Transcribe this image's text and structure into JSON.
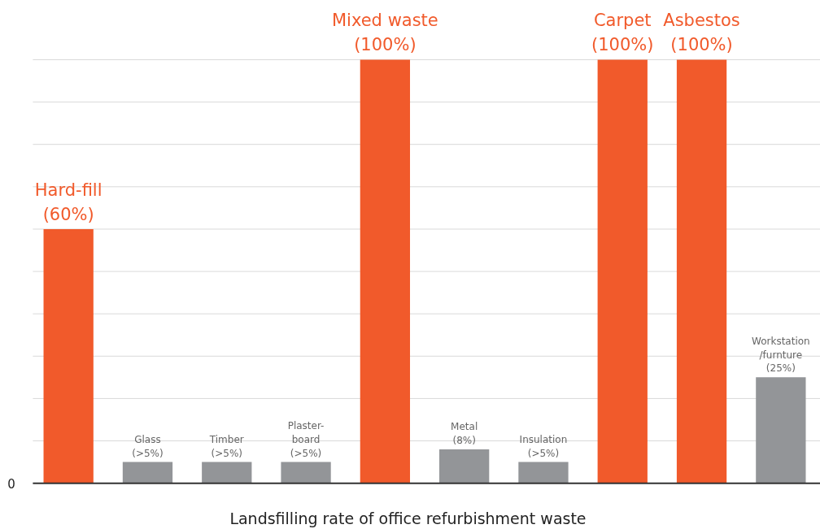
{
  "chart_data": {
    "type": "bar",
    "xlabel": "Landsfilling  rate of office refurbishment waste",
    "categories": [
      "Hard-fill",
      "Glass",
      "Timber",
      "Plaster-\nboard",
      "Mixed waste",
      "Metal",
      "Insulation",
      "Carpet",
      "Asbestos",
      "Workstation\n/furnture"
    ],
    "values": [
      60,
      5,
      5,
      5,
      100,
      8,
      5,
      100,
      100,
      25
    ],
    "value_labels": [
      "(60%)",
      "(>5%)",
      "(>5%)",
      "(>5%)",
      "(100%)",
      "(8%)",
      "(>5%)",
      "(100%)",
      "(100%)",
      "(25%)"
    ],
    "colors": [
      "#f15a2b",
      "#939598",
      "#939598",
      "#939598",
      "#f15a2b",
      "#939598",
      "#939598",
      "#f15a2b",
      "#f15a2b",
      "#939598"
    ],
    "annotations": [
      "0"
    ],
    "grid": "y",
    "tick_labels": "y"
  }
}
